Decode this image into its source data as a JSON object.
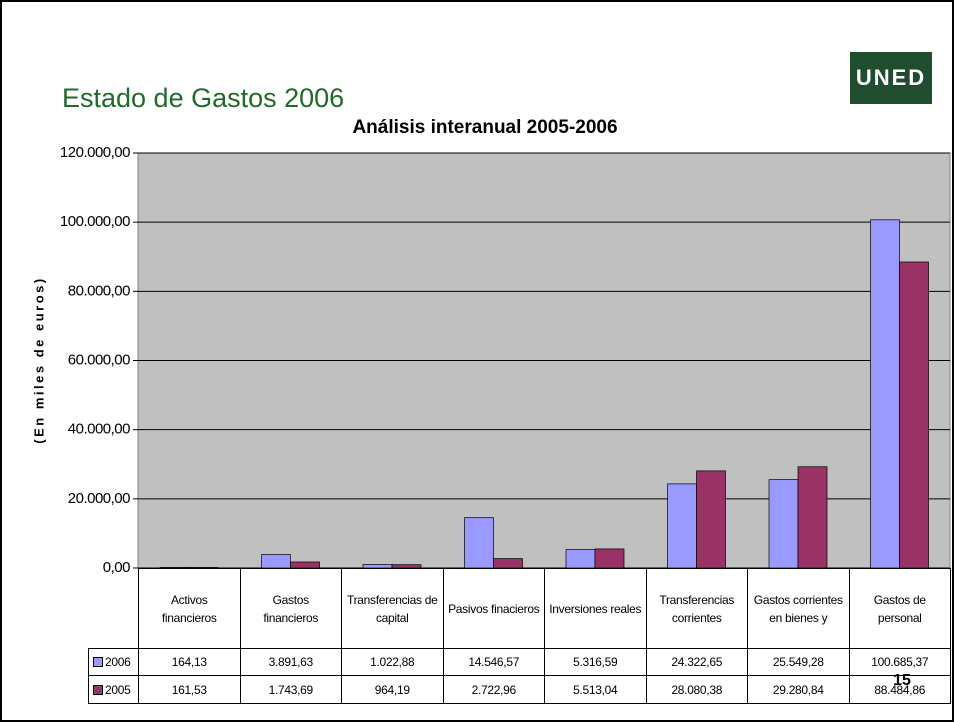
{
  "slide_title": "Estado de Gastos 2006",
  "logo": "UNED",
  "page_number": "15",
  "chart_data": {
    "type": "bar",
    "title": "Análisis interanual 2005-2006",
    "y_label": "(En miles de euros)",
    "categories": [
      "Activos financieros",
      "Gastos financieros",
      "Transferencias de capital",
      "Pasivos finacieros",
      "Inversiones reales",
      "Transferencias corrientes",
      "Gastos corrientes en bienes y",
      "Gastos de personal"
    ],
    "series": [
      {
        "name": "2006",
        "color": "#9999ff",
        "values": [
          164.13,
          3891.63,
          1022.88,
          14546.57,
          5316.59,
          24322.65,
          25549.28,
          100685.37
        ],
        "value_labels": [
          "164,13",
          "3.891,63",
          "1.022,88",
          "14.546,57",
          "5.316,59",
          "24.322,65",
          "25.549,28",
          "100.685,37"
        ]
      },
      {
        "name": "2005",
        "color": "#993366",
        "values": [
          161.53,
          1743.69,
          964.19,
          2722.96,
          5513.04,
          28080.38,
          29280.84,
          88484.86
        ],
        "value_labels": [
          "161,53",
          "1.743,69",
          "964,19",
          "2.722,96",
          "5.513,04",
          "28.080,38",
          "29.280,84",
          "88.484,86"
        ]
      }
    ],
    "ylim": [
      0,
      120000
    ],
    "yticks": [
      {
        "value": 0,
        "label": "0,00"
      },
      {
        "value": 20000,
        "label": "20.000,00"
      },
      {
        "value": 40000,
        "label": "40.000,00"
      },
      {
        "value": 60000,
        "label": "60.000,00"
      },
      {
        "value": 80000,
        "label": "80.000,00"
      },
      {
        "value": 100000,
        "label": "100.000,00"
      },
      {
        "value": 120000,
        "label": "120.000,00"
      }
    ],
    "grid": true,
    "plot_background": "#c0c0c0"
  }
}
